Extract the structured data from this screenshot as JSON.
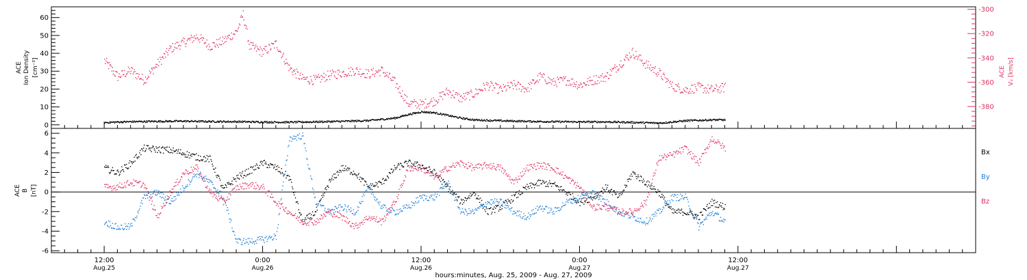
{
  "chart_data": [
    {
      "type": "scatter",
      "panel": "top",
      "ylabel_left": [
        "ACE",
        "Ion Density",
        "[cm⁻³]"
      ],
      "ylabel_right": [
        "ACE",
        "Vₓ [km/s]"
      ],
      "ylim_left": [
        -2,
        66
      ],
      "ylim_right": [
        -398,
        -298
      ],
      "yticks_left": [
        "0",
        "10",
        "20",
        "30",
        "40",
        "50",
        "60"
      ],
      "yticks_right": [
        "-300",
        "-320",
        "-340",
        "-360",
        "-380"
      ],
      "colors": {
        "density": "#000000",
        "vx": "#e0305f"
      },
      "series": [
        {
          "key": "density",
          "axis": "left",
          "x": [
            0,
            1,
            2,
            4,
            6,
            8,
            10,
            12,
            14,
            16,
            18,
            20,
            22,
            23,
            24,
            25,
            26,
            27,
            28,
            30,
            32,
            34,
            36,
            38,
            40,
            42,
            44,
            46,
            47
          ],
          "y": [
            1.5,
            1.8,
            2,
            2.2,
            2.3,
            2.1,
            2,
            1.8,
            1.7,
            1.9,
            2.2,
            2.6,
            4,
            6,
            7.5,
            7,
            5.5,
            4,
            3,
            2.5,
            2.2,
            2,
            1.9,
            1.9,
            1.6,
            1.2,
            2.5,
            3,
            3
          ]
        },
        {
          "key": "vx",
          "axis": "right",
          "x": [
            0,
            1,
            2,
            3,
            4,
            5,
            6,
            7,
            8,
            9,
            10,
            10.5,
            11,
            12,
            13,
            14,
            15,
            16,
            17,
            18,
            19,
            20,
            21,
            22,
            23,
            24,
            25,
            26,
            27,
            28,
            29,
            30,
            31,
            32,
            33,
            34,
            35,
            36,
            37,
            38,
            39,
            40,
            41,
            42,
            43,
            44,
            45,
            46,
            47
          ],
          "y": [
            -342,
            -355,
            -350,
            -358,
            -345,
            -332,
            -327,
            -322,
            -330,
            -326,
            -318,
            -304,
            -330,
            -335,
            -328,
            -348,
            -357,
            -358,
            -354,
            -352,
            -350,
            -353,
            -350,
            -360,
            -377,
            -378,
            -375,
            -367,
            -373,
            -369,
            -362,
            -366,
            -362,
            -365,
            -355,
            -360,
            -358,
            -362,
            -358,
            -355,
            -345,
            -335,
            -345,
            -352,
            -363,
            -366,
            -364,
            -366,
            -364
          ]
        }
      ]
    },
    {
      "type": "scatter",
      "panel": "bottom",
      "ylabel_left": [
        "ACE",
        "B",
        "[nT]"
      ],
      "ylim": [
        -6.2,
        6.5
      ],
      "yticks": [
        "-6",
        "-4",
        "-2",
        "0",
        "2",
        "4",
        "6"
      ],
      "legend": [
        "Bx",
        "By",
        "Bz"
      ],
      "series": [
        {
          "key": "bx",
          "label": "Bx",
          "color": "#000000",
          "x": [
            0,
            1,
            2,
            3,
            4,
            5,
            6,
            7,
            8,
            9,
            10,
            11,
            12,
            13,
            14,
            15,
            16,
            17,
            18,
            19,
            20,
            21,
            22,
            23,
            24,
            25,
            26,
            27,
            28,
            29,
            30,
            31,
            32,
            33,
            34,
            35,
            36,
            37,
            38,
            39,
            40,
            41,
            42,
            43,
            44,
            45,
            46,
            47
          ],
          "y": [
            2.5,
            2,
            3,
            4.5,
            4.4,
            4.3,
            4,
            3.6,
            3.4,
            0.3,
            1.5,
            2.2,
            3,
            2.5,
            1.5,
            -3,
            -2,
            1,
            2.5,
            2,
            0.5,
            1,
            2.5,
            3,
            2.7,
            2,
            0.5,
            -1,
            0,
            -2,
            -1.5,
            -0.5,
            0.5,
            1,
            0.8,
            0,
            -1,
            -0.5,
            0.5,
            -0.5,
            2,
            1,
            0,
            -2,
            -2,
            -2.5,
            -1,
            -1.5
          ]
        },
        {
          "key": "by",
          "label": "By",
          "color": "#1f7fd6",
          "x": [
            0,
            1,
            2,
            3,
            4,
            5,
            6,
            7,
            8,
            9,
            10,
            11,
            12,
            13,
            14,
            15,
            16,
            17,
            18,
            19,
            20,
            21,
            22,
            23,
            24,
            25,
            26,
            27,
            28,
            29,
            30,
            31,
            32,
            33,
            34,
            35,
            36,
            37,
            38,
            39,
            40,
            41,
            42,
            43,
            44,
            45,
            46,
            47
          ],
          "y": [
            -3,
            -3.6,
            -3.5,
            -0.5,
            0,
            -1,
            0.5,
            2,
            1,
            -0.5,
            -5,
            -5,
            -4.8,
            -4.5,
            5.5,
            5.8,
            -1,
            -2,
            -1.5,
            -2,
            0.5,
            -1.5,
            -2,
            -1.5,
            -0.5,
            -0.5,
            1,
            -2,
            -2,
            -1,
            -1,
            -2,
            -2.5,
            -1.5,
            -2,
            -1,
            -0.5,
            0,
            -1,
            -2,
            -2.5,
            -3,
            -2,
            -0.5,
            -0.5,
            -3.5,
            -2,
            -3
          ]
        },
        {
          "key": "bz",
          "label": "Bz",
          "color": "#e0305f",
          "x": [
            0,
            1,
            2,
            3,
            4,
            5,
            6,
            7,
            8,
            9,
            10,
            11,
            12,
            13,
            14,
            15,
            16,
            17,
            18,
            19,
            20,
            21,
            22,
            23,
            24,
            25,
            26,
            27,
            28,
            29,
            30,
            31,
            32,
            33,
            34,
            35,
            36,
            37,
            38,
            39,
            40,
            41,
            42,
            43,
            44,
            45,
            46,
            47
          ],
          "y": [
            0.5,
            0.6,
            1,
            0.8,
            -2.5,
            0,
            2,
            2.5,
            0,
            -1,
            0.5,
            0.8,
            0.5,
            -1,
            -2,
            -3,
            -3,
            -2,
            -2.5,
            -3.5,
            -2.5,
            -3,
            -1,
            2.5,
            2.5,
            1.5,
            2.5,
            3,
            2.5,
            2.8,
            2.5,
            1,
            2.5,
            2.8,
            2.5,
            1.5,
            0.5,
            -1.5,
            -1.5,
            -2,
            -2,
            -1,
            3.5,
            3.8,
            4.5,
            3,
            5.5,
            4.5
          ]
        }
      ]
    }
  ],
  "xaxis": {
    "range": [
      -4,
      66
    ],
    "major_ticks": [
      {
        "x": 0,
        "time": "12:00",
        "date": "Aug.25"
      },
      {
        "x": 12,
        "time": "0:00",
        "date": "Aug.26"
      },
      {
        "x": 24,
        "time": "12:00",
        "date": "Aug.26"
      },
      {
        "x": 36,
        "time": "0:00",
        "date": "Aug.27"
      },
      {
        "x": 48,
        "time": "12:00",
        "date": "Aug.27"
      }
    ],
    "title": "hours:minutes, Aug. 25, 2009 - Aug. 27, 2009"
  }
}
